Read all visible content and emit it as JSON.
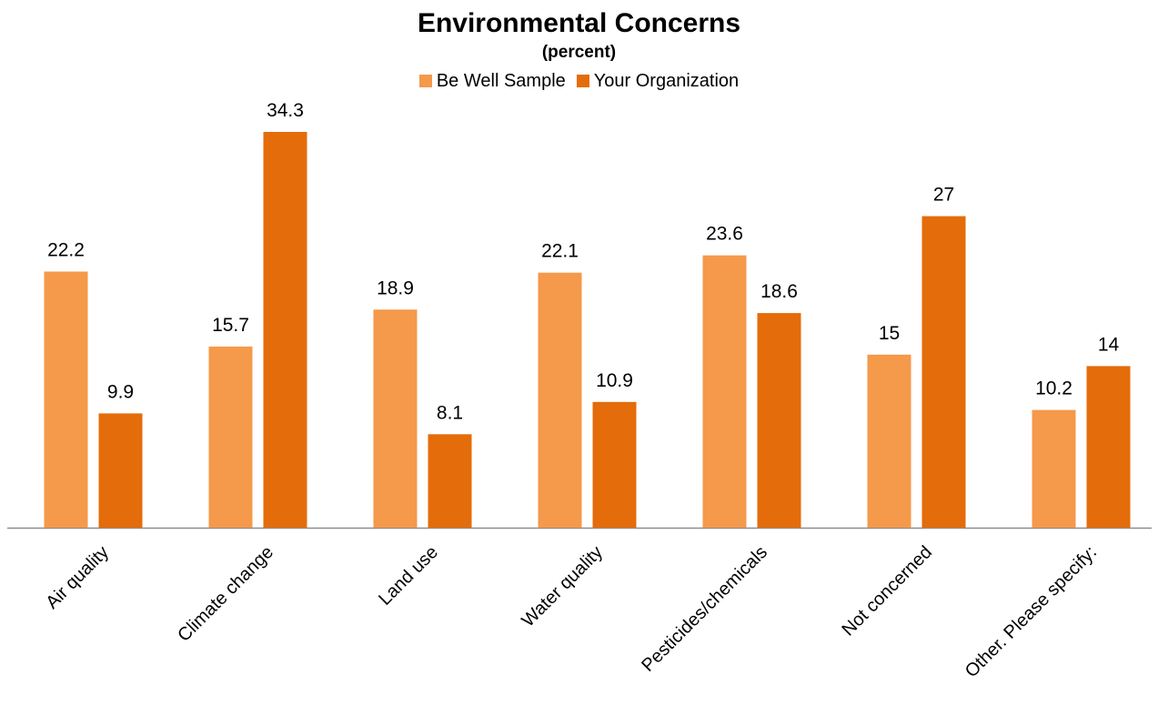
{
  "chart_data": {
    "type": "bar",
    "title": "Environmental Concerns",
    "subtitle": "(percent)",
    "categories": [
      "Air quality",
      "Climate change",
      "Land use",
      "Water quality",
      "Pesticides/chemicals",
      "Not concerned",
      "Other. Please specify:"
    ],
    "series": [
      {
        "name": "Be Well Sample",
        "color": "#F5994A",
        "values": [
          22.2,
          15.7,
          18.9,
          22.1,
          23.6,
          15,
          10.2
        ],
        "labels": [
          "22.2",
          "15.7",
          "18.9",
          "22.1",
          "23.6",
          "15",
          "10.2"
        ]
      },
      {
        "name": "Your Organization",
        "color": "#E46C0A",
        "values": [
          9.9,
          34.3,
          8.1,
          10.9,
          18.6,
          27,
          14
        ],
        "labels": [
          "9.9",
          "34.3",
          "8.1",
          "10.9",
          "18.6",
          "27",
          "14"
        ]
      }
    ],
    "xlabel": "",
    "ylabel": "",
    "ylim": [
      0,
      34.3
    ],
    "grid": false,
    "legend_position": "top"
  }
}
